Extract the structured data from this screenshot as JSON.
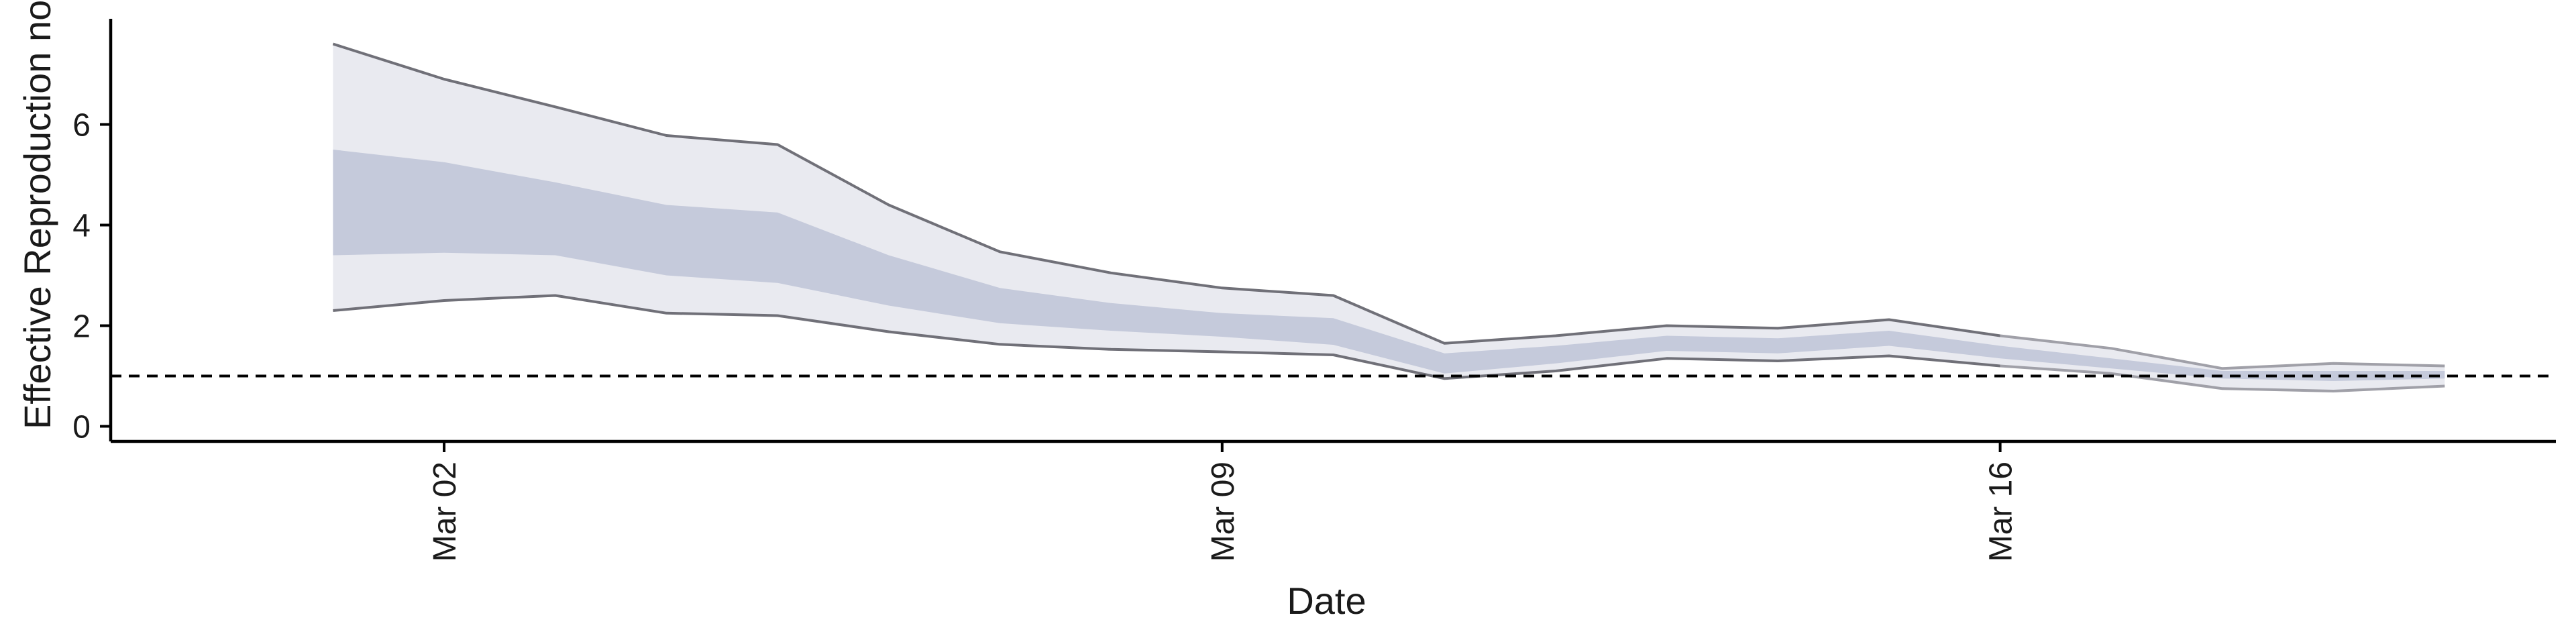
{
  "chart_data": {
    "type": "area",
    "xlabel": "Date",
    "ylabel": "Effective Reproduction no.",
    "x_ticks": [
      "Mar 02",
      "Mar 09",
      "Mar 16"
    ],
    "y_ticks": [
      "0",
      "2",
      "4",
      "6"
    ],
    "ylim": [
      -0.3,
      8.1
    ],
    "xlim": [
      "2020-02-28",
      "2020-03-21"
    ],
    "reference_line": {
      "y": 1,
      "style": "dashed"
    },
    "grid": false,
    "legend": "none",
    "x": [
      "2020-03-01",
      "2020-03-02",
      "2020-03-03",
      "2020-03-04",
      "2020-03-05",
      "2020-03-06",
      "2020-03-07",
      "2020-03-08",
      "2020-03-09",
      "2020-03-10",
      "2020-03-11",
      "2020-03-12",
      "2020-03-13",
      "2020-03-14",
      "2020-03-15",
      "2020-03-16",
      "2020-03-17",
      "2020-03-18",
      "2020-03-19",
      "2020-03-20"
    ],
    "series": [
      {
        "name": "",
        "role": "outer_upper",
        "values": [
          7.6,
          6.9,
          6.35,
          5.78,
          5.6,
          4.4,
          3.47,
          3.05,
          2.75,
          2.6,
          1.65,
          1.8,
          2.0,
          1.95,
          2.12,
          1.8,
          1.55,
          1.15,
          1.25,
          1.2
        ]
      },
      {
        "name": "",
        "role": "inner_upper",
        "values": [
          5.5,
          5.25,
          4.85,
          4.4,
          4.25,
          3.4,
          2.75,
          2.45,
          2.25,
          2.15,
          1.45,
          1.6,
          1.8,
          1.75,
          1.9,
          1.6,
          1.35,
          1.1,
          1.1,
          1.1
        ]
      },
      {
        "name": "",
        "role": "inner_lower",
        "values": [
          3.4,
          3.45,
          3.4,
          3.0,
          2.85,
          2.4,
          2.05,
          1.9,
          1.78,
          1.62,
          1.05,
          1.25,
          1.5,
          1.45,
          1.6,
          1.35,
          1.15,
          0.95,
          0.9,
          0.95
        ]
      },
      {
        "name": "",
        "role": "outer_lower",
        "values": [
          2.3,
          2.5,
          2.6,
          2.25,
          2.2,
          1.88,
          1.63,
          1.53,
          1.48,
          1.42,
          0.95,
          1.1,
          1.35,
          1.3,
          1.4,
          1.2,
          1.05,
          0.75,
          0.7,
          0.8
        ]
      }
    ],
    "colors": {
      "outer_band": "#e9eaf0",
      "inner_band": "#c5cadb",
      "bound_line_fixed": "#707078",
      "bound_line_recent": "#a0a0a8",
      "axis": "#000000"
    },
    "fixed_through_index": 15
  }
}
